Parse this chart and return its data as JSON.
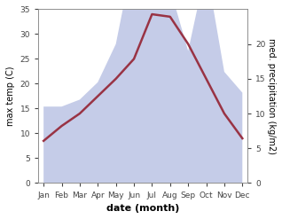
{
  "months": [
    "Jan",
    "Feb",
    "Mar",
    "Apr",
    "May",
    "Jun",
    "Jul",
    "Aug",
    "Sep",
    "Oct",
    "Nov",
    "Dec"
  ],
  "temp": [
    8.5,
    11.5,
    14.0,
    17.5,
    21.0,
    25.0,
    34.0,
    33.5,
    28.0,
    21.0,
    14.0,
    9.0
  ],
  "precip": [
    11.0,
    11.0,
    12.0,
    14.5,
    20.0,
    33.0,
    35.0,
    28.0,
    19.0,
    31.0,
    16.0,
    13.0
  ],
  "temp_color": "#993344",
  "precip_fill_color": "#c5cce8",
  "temp_ylim": [
    0,
    35
  ],
  "precip_ylim": [
    0,
    25
  ],
  "right_yticks": [
    0,
    5,
    10,
    15,
    20
  ],
  "left_yticks": [
    0,
    5,
    10,
    15,
    20,
    25,
    30,
    35
  ],
  "xlabel": "date (month)",
  "ylabel_left": "max temp (C)",
  "ylabel_right": "med. precipitation (kg/m2)",
  "bg_color": "#ffffff",
  "label_fontsize": 7,
  "tick_fontsize": 6.5,
  "xlabel_fontsize": 8
}
